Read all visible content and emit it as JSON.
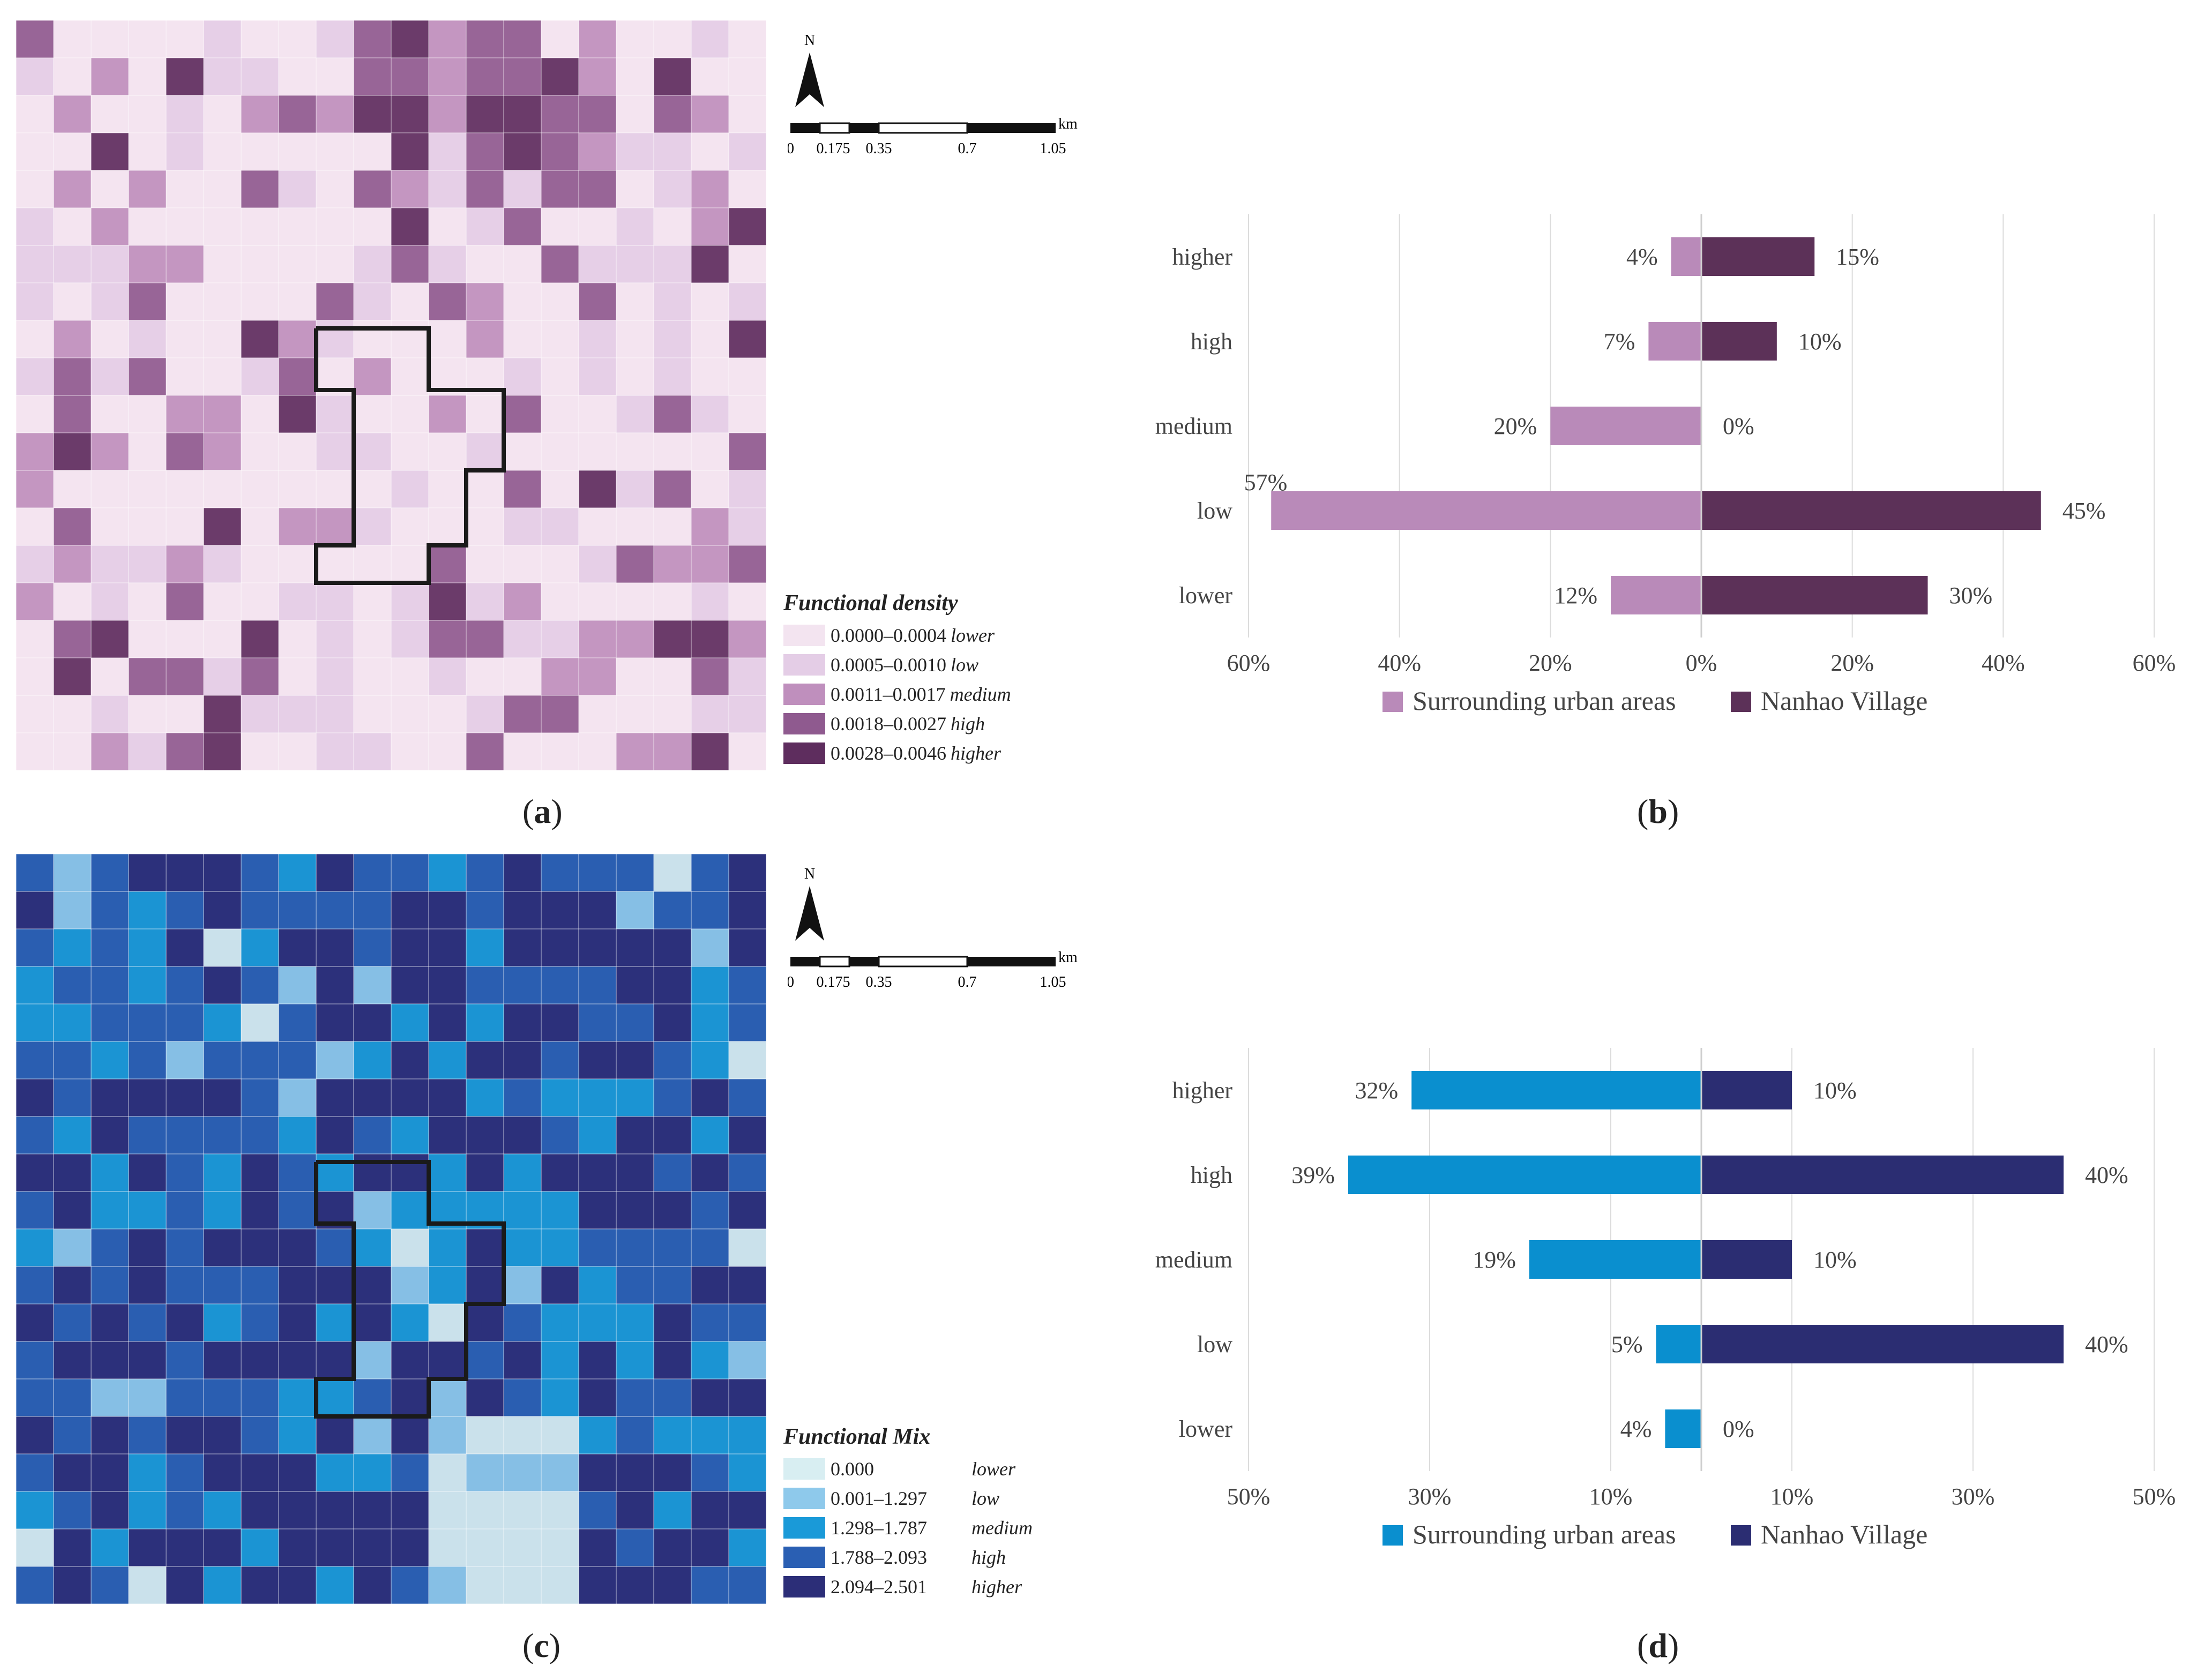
{
  "panels": {
    "a": "a",
    "b": "b",
    "c": "c",
    "d": "d"
  },
  "map_common": {
    "north": "N",
    "scale_unit": "km",
    "scale_ticks": [
      "0",
      "0.175",
      "0.35",
      "0.7",
      "1.05"
    ]
  },
  "map_a": {
    "legend_title": "Functional density",
    "legend_items": [
      {
        "range": "0.0000–0.0004",
        "cls": "lower",
        "color": "#f3e4f0"
      },
      {
        "range": "0.0005–0.0010",
        "cls": "low",
        "color": "#e4cde6"
      },
      {
        "range": "0.0011–0.0017",
        "cls": "medium",
        "color": "#bf8fbd"
      },
      {
        "range": "0.0018–0.0027",
        "cls": "high",
        "color": "#8f5a8f"
      },
      {
        "range": "0.0028–0.0046",
        "cls": "higher",
        "color": "#5e2d5e"
      }
    ]
  },
  "map_c": {
    "legend_title": "Functional Mix",
    "legend_items": [
      {
        "range": "0.000",
        "cls": "lower",
        "color": "#d8eef2"
      },
      {
        "range": "0.001–1.297",
        "cls": "low",
        "color": "#8ec9eb"
      },
      {
        "range": "1.298–1.787",
        "cls": "medium",
        "color": "#1a9ad8"
      },
      {
        "range": "1.788–2.093",
        "cls": "high",
        "color": "#2a5fb3"
      },
      {
        "range": "2.094–2.501",
        "cls": "higher",
        "color": "#2c2e78"
      }
    ]
  },
  "chart_data": [
    {
      "type": "bar",
      "orientation": "horizontal-diverging",
      "categories": [
        "higher",
        "high",
        "medium",
        "low",
        "lower"
      ],
      "series": [
        {
          "name": "Surrounding urban areas",
          "values": [
            4,
            7,
            20,
            57,
            12
          ],
          "color": "#b98ab9",
          "side": "left"
        },
        {
          "name": "Nanhao Village",
          "values": [
            15,
            10,
            0,
            45,
            30
          ],
          "color": "#5c3158",
          "side": "right"
        }
      ],
      "value_labels_left": [
        "4%",
        "7%",
        "20%",
        "57%",
        "12%"
      ],
      "value_labels_right": [
        "15%",
        "10%",
        "0%",
        "45%",
        "30%"
      ],
      "xlim": [
        -60,
        60
      ],
      "x_tick_labels": [
        "60%",
        "40%",
        "20%",
        "0%",
        "20%",
        "40%",
        "60%"
      ],
      "title": "",
      "xlabel": "",
      "ylabel": ""
    },
    {
      "type": "bar",
      "orientation": "horizontal-diverging",
      "categories": [
        "higher",
        "high",
        "medium",
        "low",
        "lower"
      ],
      "series": [
        {
          "name": "Surrounding urban areas",
          "values": [
            32,
            39,
            19,
            5,
            4
          ],
          "color": "#0a8fcf",
          "side": "left"
        },
        {
          "name": "Nanhao Village",
          "values": [
            10,
            40,
            10,
            40,
            0
          ],
          "color": "#2b2d72",
          "side": "right"
        }
      ],
      "value_labels_left": [
        "32%",
        "39%",
        "19%",
        "5%",
        "4%"
      ],
      "value_labels_right": [
        "10%",
        "40%",
        "10%",
        "40%",
        "0%"
      ],
      "xlim": [
        -50,
        50
      ],
      "x_tick_labels": [
        "50%",
        "30%",
        "10%",
        "10%",
        "30%",
        "50%"
      ],
      "title": "",
      "xlabel": "",
      "ylabel": ""
    }
  ]
}
